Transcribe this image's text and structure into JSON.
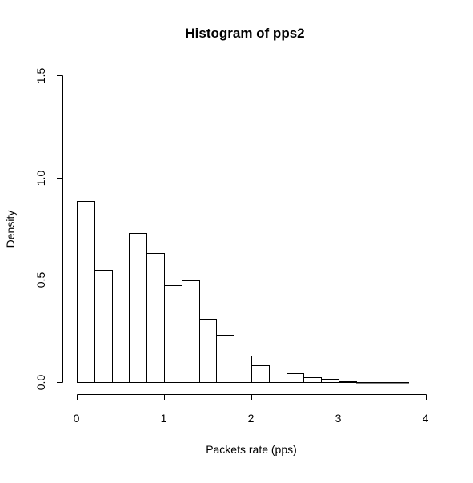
{
  "chart_data": {
    "type": "bar",
    "title": "Histogram of pps2",
    "xlabel": "Packets rate (pps)",
    "ylabel": "Density",
    "xlim": [
      0,
      4
    ],
    "ylim": [
      0,
      1.5
    ],
    "x_ticks": [
      "0",
      "1",
      "2",
      "3",
      "4"
    ],
    "y_ticks": [
      "0.0",
      "0.5",
      "1.0",
      "1.5"
    ],
    "bin_width": 0.2,
    "bins": [
      {
        "start": 0.0,
        "end": 0.2,
        "density": 0.885
      },
      {
        "start": 0.2,
        "end": 0.4,
        "density": 0.55
      },
      {
        "start": 0.4,
        "end": 0.6,
        "density": 0.346
      },
      {
        "start": 0.6,
        "end": 0.8,
        "density": 0.727
      },
      {
        "start": 0.8,
        "end": 1.0,
        "density": 0.63
      },
      {
        "start": 1.0,
        "end": 1.2,
        "density": 0.472
      },
      {
        "start": 1.2,
        "end": 1.4,
        "density": 0.496
      },
      {
        "start": 1.4,
        "end": 1.6,
        "density": 0.311
      },
      {
        "start": 1.6,
        "end": 1.8,
        "density": 0.232
      },
      {
        "start": 1.8,
        "end": 2.0,
        "density": 0.131
      },
      {
        "start": 2.0,
        "end": 2.2,
        "density": 0.083
      },
      {
        "start": 2.2,
        "end": 2.4,
        "density": 0.051
      },
      {
        "start": 2.4,
        "end": 2.6,
        "density": 0.043
      },
      {
        "start": 2.6,
        "end": 2.8,
        "density": 0.024
      },
      {
        "start": 2.8,
        "end": 3.0,
        "density": 0.016
      },
      {
        "start": 3.0,
        "end": 3.2,
        "density": 0.005
      },
      {
        "start": 3.2,
        "end": 3.4,
        "density": 0.001
      },
      {
        "start": 3.4,
        "end": 3.6,
        "density": 0.001
      },
      {
        "start": 3.6,
        "end": 3.8,
        "density": 0.001
      }
    ]
  }
}
